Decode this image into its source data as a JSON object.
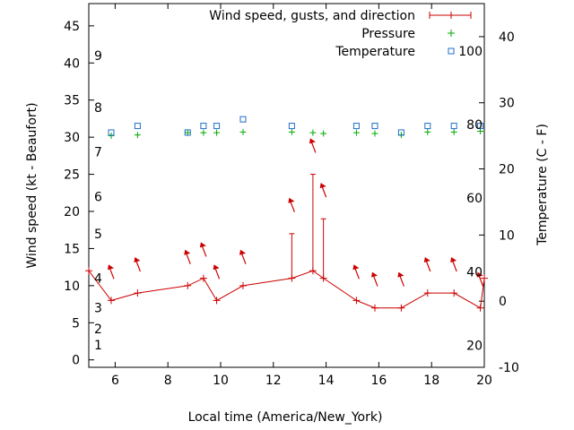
{
  "chart_data": {
    "type": "line",
    "xlabel": "Local time (America/New_York)",
    "ylabel_left": "Wind speed (kt - Beaufort)",
    "ylabel_right": "Temperature (C - F)",
    "xlim": [
      5,
      20
    ],
    "ylim_left": [
      -1,
      48
    ],
    "ylim_right": [
      -10,
      45
    ],
    "x_ticks": [
      6,
      8,
      10,
      12,
      14,
      16,
      18,
      20
    ],
    "y_left_ticks": [
      0,
      5,
      10,
      15,
      20,
      25,
      30,
      35,
      40,
      45
    ],
    "y_right_ticks": [
      -10,
      0,
      10,
      20,
      30,
      40
    ],
    "beaufort_labels": [
      {
        "label": "1",
        "wind": 2.0
      },
      {
        "label": "2",
        "wind": 4.2
      },
      {
        "label": "3",
        "wind": 7.0
      },
      {
        "label": "4",
        "wind": 11.0
      },
      {
        "label": "5",
        "wind": 17.0
      },
      {
        "label": "6",
        "wind": 22.0
      },
      {
        "label": "7",
        "wind": 28.0
      },
      {
        "label": "8",
        "wind": 34.0
      },
      {
        "label": "9",
        "wind": 41.0
      }
    ],
    "fahrenheit_labels": [
      {
        "label": "20",
        "temp": -6.7
      },
      {
        "label": "40",
        "temp": 4.4
      },
      {
        "label": "60",
        "temp": 15.6
      },
      {
        "label": "80",
        "temp": 26.7
      },
      {
        "label": "100",
        "temp": 37.8
      }
    ],
    "legend_position": "top-right",
    "colors": {
      "wind": "#cc0000",
      "pressure": "#00aa00",
      "temperature": "#1f6ec9"
    },
    "series": [
      {
        "name": "Wind speed, gusts, and direction",
        "points": [
          {
            "x": 5.0,
            "y": 12,
            "gust": null
          },
          {
            "x": 5.85,
            "y": 8,
            "gust": null
          },
          {
            "x": 6.85,
            "y": 9,
            "gust": null
          },
          {
            "x": 8.75,
            "y": 10,
            "gust": null
          },
          {
            "x": 9.35,
            "y": 11,
            "gust": null
          },
          {
            "x": 9.85,
            "y": 8,
            "gust": null
          },
          {
            "x": 10.85,
            "y": 10,
            "gust": null
          },
          {
            "x": 12.7,
            "y": 11,
            "gust": 17
          },
          {
            "x": 13.5,
            "y": 12,
            "gust": 25
          },
          {
            "x": 13.9,
            "y": 11,
            "gust": 19
          },
          {
            "x": 15.15,
            "y": 8,
            "gust": null
          },
          {
            "x": 15.85,
            "y": 7,
            "gust": null
          },
          {
            "x": 16.85,
            "y": 7,
            "gust": null
          },
          {
            "x": 17.85,
            "y": 9,
            "gust": null
          },
          {
            "x": 18.85,
            "y": 9,
            "gust": null
          },
          {
            "x": 19.85,
            "y": 7,
            "gust": null
          },
          {
            "x": 20.0,
            "y": 11,
            "gust": null
          }
        ]
      },
      {
        "name": "Pressure",
        "x": [
          5.85,
          6.85,
          8.75,
          9.35,
          9.85,
          10.85,
          12.7,
          13.5,
          13.9,
          15.15,
          15.85,
          16.85,
          17.85,
          18.85,
          19.85
        ],
        "y": [
          30.2,
          30.3,
          30.6,
          30.6,
          30.6,
          30.7,
          30.7,
          30.6,
          30.5,
          30.6,
          30.5,
          30.3,
          30.7,
          30.7,
          30.8
        ]
      },
      {
        "name": "Temperature",
        "x": [
          5.85,
          6.85,
          8.75,
          9.35,
          9.85,
          10.85,
          12.7,
          15.15,
          15.85,
          16.85,
          17.85,
          18.85,
          19.85
        ],
        "y": [
          25.5,
          26.5,
          25.5,
          26.5,
          26.5,
          27.5,
          26.5,
          26.5,
          26.5,
          25.5,
          26.5,
          26.5,
          26.5
        ]
      }
    ],
    "wind_arrows": [
      {
        "x": 5.85,
        "level": 12
      },
      {
        "x": 6.85,
        "level": 13
      },
      {
        "x": 8.75,
        "level": 14
      },
      {
        "x": 9.35,
        "level": 15
      },
      {
        "x": 9.85,
        "level": 12
      },
      {
        "x": 10.85,
        "level": 14
      },
      {
        "x": 12.7,
        "level": 21
      },
      {
        "x": 13.5,
        "level": 29
      },
      {
        "x": 13.9,
        "level": 23
      },
      {
        "x": 15.15,
        "level": 12
      },
      {
        "x": 15.85,
        "level": 11
      },
      {
        "x": 16.85,
        "level": 11
      },
      {
        "x": 17.85,
        "level": 13
      },
      {
        "x": 18.85,
        "level": 13
      },
      {
        "x": 19.85,
        "level": 11
      }
    ]
  }
}
